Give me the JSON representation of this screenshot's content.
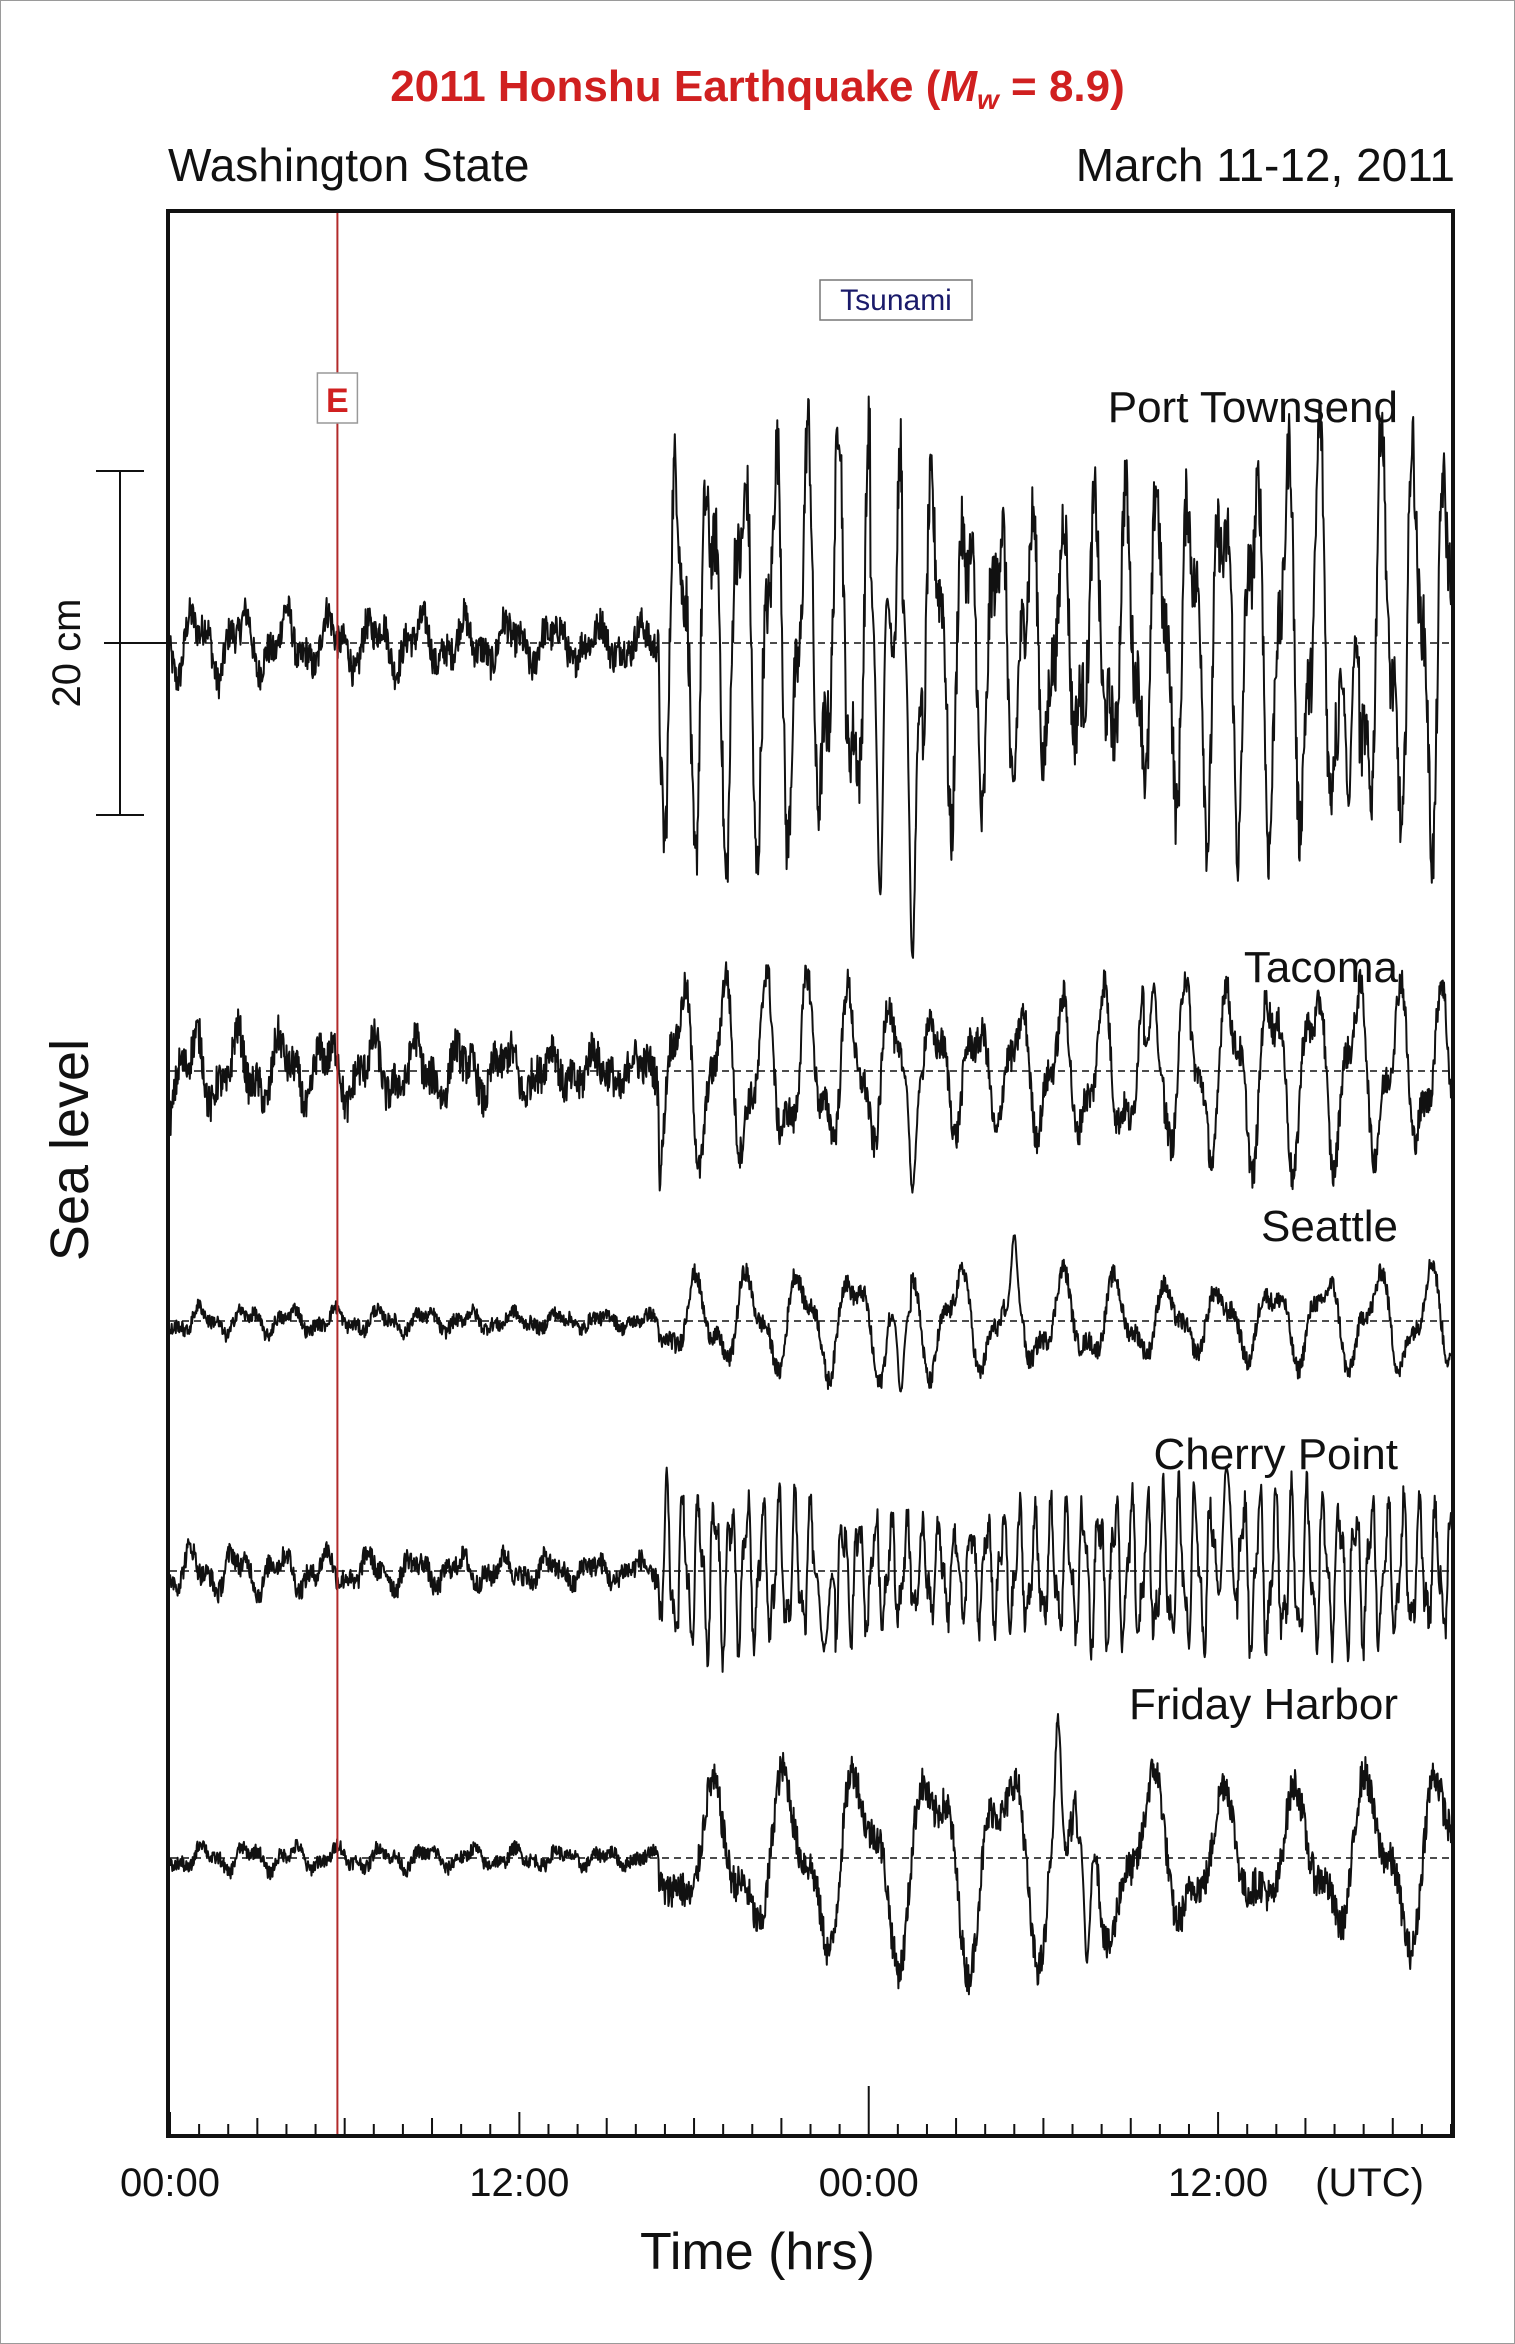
{
  "title": {
    "prefix": "2011 Honshu Earthquake  (",
    "m": "M",
    "sub": "w",
    "suffix": " = 8.9)",
    "color": "#d02020"
  },
  "region": "Washington State",
  "date_range": "March 11-12, 2011",
  "tsunami_label": "Tsunami",
  "event_marker": {
    "label": "E",
    "time_hours": 5.75,
    "color": "#b22a2a"
  },
  "chart_data": {
    "type": "line",
    "xlabel": "Time  (hrs)",
    "ylabel": "Sea  level",
    "scale_bar": {
      "label": "20 cm",
      "value_cm": 20
    },
    "x_unit_label": "(UTC)",
    "xlim_hours": [
      0,
      44
    ],
    "x_ticks": [
      {
        "hours": 0,
        "label": "00:00"
      },
      {
        "hours": 12,
        "label": "12:00"
      },
      {
        "hours": 24,
        "label": "00:00"
      },
      {
        "hours": 36,
        "label": "12:00"
      }
    ],
    "tsunami_arrival_hours": 16.8,
    "series": [
      {
        "name": "Port Townsend",
        "baseline_y": 643,
        "pre_amp_cm": 2.2,
        "post_amp_cm": 12,
        "extremes_cm": [
          {
            "hours": 24.6,
            "value": 15.5
          },
          {
            "hours": 25.5,
            "value": -18
          },
          {
            "hours": 24.4,
            "value": -15
          },
          {
            "hours": 40.5,
            "value": -13
          }
        ]
      },
      {
        "name": "Tacoma",
        "baseline_y": 1071,
        "pre_amp_cm": 2.5,
        "post_amp_cm": 5.5,
        "extremes_cm": [
          {
            "hours": 33.8,
            "value": 5
          },
          {
            "hours": 25.5,
            "value": -6
          }
        ]
      },
      {
        "name": "Seattle",
        "baseline_y": 1321,
        "pre_amp_cm": 0.9,
        "post_amp_cm": 3.2,
        "extremes_cm": [
          {
            "hours": 25.1,
            "value": -4.5
          },
          {
            "hours": 29.0,
            "value": 4
          }
        ]
      },
      {
        "name": "Cherry Point",
        "baseline_y": 1571,
        "pre_amp_cm": 1.4,
        "post_amp_cm": 4.8,
        "extremes_cm": [
          {
            "hours": 36.3,
            "value": 5.5
          },
          {
            "hours": 22.5,
            "value": -5.5
          }
        ]
      },
      {
        "name": "Friday Harbor",
        "baseline_y": 1858,
        "pre_amp_cm": 0.9,
        "post_amp_cm": 6.0,
        "extremes_cm": [
          {
            "hours": 30.5,
            "value": 8
          },
          {
            "hours": 31.5,
            "value": -7.5
          }
        ]
      }
    ]
  }
}
